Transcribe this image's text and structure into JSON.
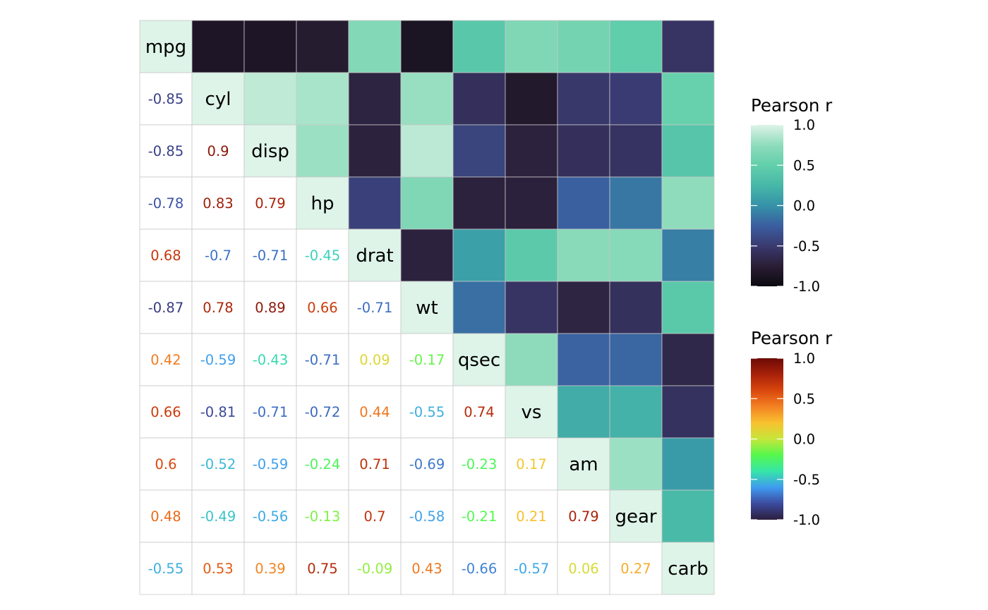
{
  "chart_data": {
    "type": "heatmap",
    "variables": [
      "mpg",
      "cyl",
      "disp",
      "hp",
      "drat",
      "wt",
      "qsec",
      "vs",
      "am",
      "gear",
      "carb"
    ],
    "matrix": [
      [
        1.0,
        -0.85,
        -0.85,
        -0.78,
        0.68,
        -0.87,
        0.42,
        0.66,
        0.6,
        0.48,
        -0.55
      ],
      [
        -0.85,
        1.0,
        0.9,
        0.83,
        -0.7,
        0.78,
        -0.59,
        -0.81,
        -0.52,
        -0.49,
        0.53
      ],
      [
        -0.85,
        0.9,
        1.0,
        0.79,
        -0.71,
        0.89,
        -0.43,
        -0.71,
        -0.59,
        -0.56,
        0.39
      ],
      [
        -0.78,
        0.83,
        0.79,
        1.0,
        -0.45,
        0.66,
        -0.71,
        -0.72,
        -0.24,
        -0.13,
        0.75
      ],
      [
        0.68,
        -0.7,
        -0.71,
        -0.45,
        1.0,
        -0.71,
        0.09,
        0.44,
        0.71,
        0.7,
        -0.09
      ],
      [
        -0.87,
        0.78,
        0.89,
        0.66,
        -0.71,
        1.0,
        -0.17,
        -0.55,
        -0.69,
        -0.58,
        0.43
      ],
      [
        0.42,
        -0.59,
        -0.43,
        -0.71,
        0.09,
        -0.17,
        1.0,
        0.74,
        -0.23,
        -0.21,
        -0.66
      ],
      [
        0.66,
        -0.81,
        -0.71,
        -0.72,
        0.44,
        -0.55,
        0.74,
        1.0,
        0.17,
        0.21,
        -0.57
      ],
      [
        0.6,
        -0.52,
        -0.59,
        -0.24,
        0.71,
        -0.69,
        -0.23,
        0.17,
        1.0,
        0.79,
        0.06
      ],
      [
        0.48,
        -0.49,
        -0.56,
        -0.13,
        0.7,
        -0.58,
        -0.21,
        0.21,
        0.79,
        1.0,
        0.27
      ],
      [
        -0.55,
        0.53,
        0.39,
        0.75,
        -0.09,
        0.43,
        -0.66,
        -0.57,
        0.06,
        0.27,
        1.0
      ]
    ],
    "lower_triangle": "text",
    "upper_triangle": "tile",
    "diagonal": "variable names",
    "legends": [
      {
        "title": "Pearson r",
        "applies_to": "upper_triangle tiles",
        "range": [
          -1.0,
          1.0
        ],
        "tick_labels": [
          "1.0",
          "0.5",
          "0.0",
          "-0.5",
          "-1.0"
        ],
        "tick_values": [
          1.0,
          0.5,
          0.0,
          -0.5,
          -1.0
        ],
        "colors": [
          "#0b0a0f",
          "#2a1e35",
          "#3a3a70",
          "#3b5ea0",
          "#3592a8",
          "#47b8a8",
          "#62cfab",
          "#8fdcbc",
          "#def4e8"
        ]
      },
      {
        "title": "Pearson r",
        "applies_to": "lower_triangle text",
        "range": [
          -1.0,
          1.0
        ],
        "tick_labels": [
          "1.0",
          "0.5",
          "0.0",
          "-0.5",
          "-1.0"
        ],
        "tick_values": [
          1.0,
          0.5,
          0.0,
          -0.5,
          -1.0
        ],
        "colors": [
          "#2d1e3e",
          "#3c4a9e",
          "#3f9bf0",
          "#36e5a8",
          "#55f84d",
          "#c6e63a",
          "#f8c22f",
          "#f48223",
          "#d9470d",
          "#a8210a",
          "#6d0a05"
        ]
      }
    ],
    "legend_position": "right",
    "grid": false
  }
}
